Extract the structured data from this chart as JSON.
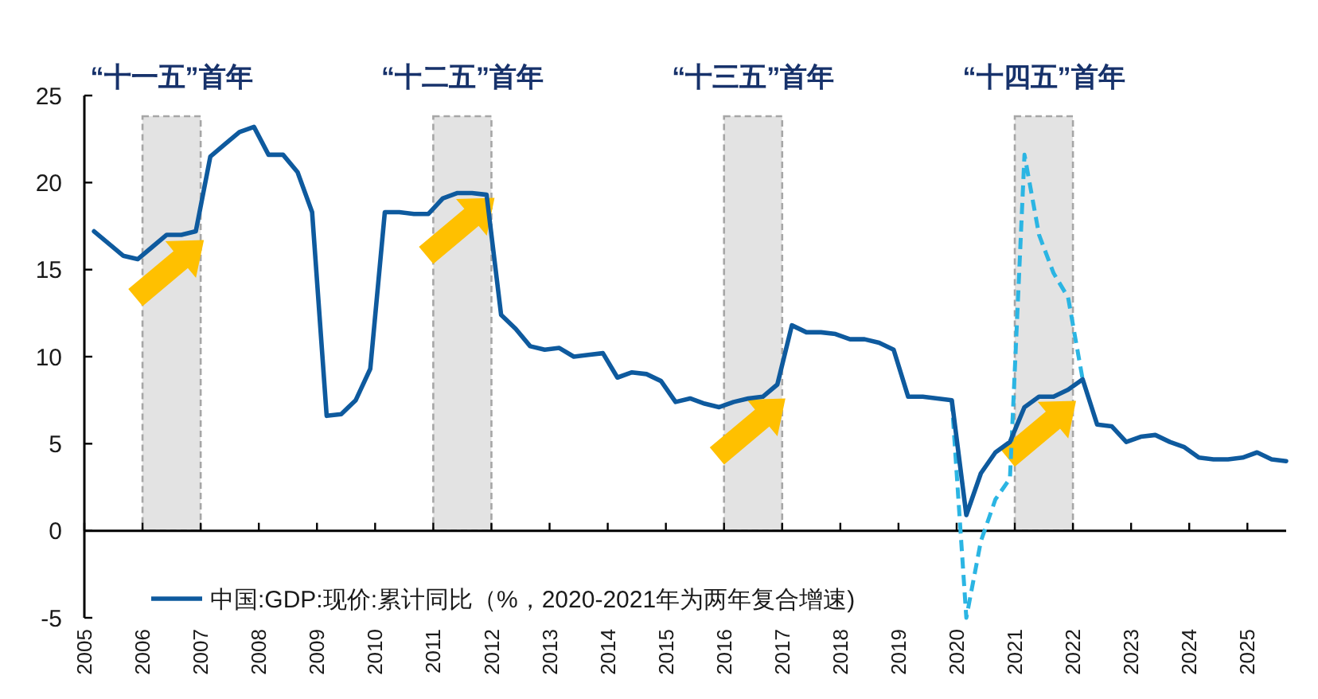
{
  "chart_data": {
    "type": "line",
    "x": [
      "2005-03",
      "2005-06",
      "2005-09",
      "2005-12",
      "2006-03",
      "2006-06",
      "2006-09",
      "2006-12",
      "2007-03",
      "2007-06",
      "2007-09",
      "2007-12",
      "2008-03",
      "2008-06",
      "2008-09",
      "2008-12",
      "2009-03",
      "2009-06",
      "2009-09",
      "2009-12",
      "2010-03",
      "2010-06",
      "2010-09",
      "2010-12",
      "2011-03",
      "2011-06",
      "2011-09",
      "2011-12",
      "2012-03",
      "2012-06",
      "2012-09",
      "2012-12",
      "2013-03",
      "2013-06",
      "2013-09",
      "2013-12",
      "2014-03",
      "2014-06",
      "2014-09",
      "2014-12",
      "2015-03",
      "2015-06",
      "2015-09",
      "2015-12",
      "2016-03",
      "2016-06",
      "2016-09",
      "2016-12",
      "2017-03",
      "2017-06",
      "2017-09",
      "2017-12",
      "2018-03",
      "2018-06",
      "2018-09",
      "2018-12",
      "2019-03",
      "2019-06",
      "2019-09",
      "2019-12",
      "2020-03",
      "2020-06",
      "2020-09",
      "2020-12",
      "2021-03",
      "2021-06",
      "2021-09",
      "2021-12",
      "2022-03",
      "2022-06",
      "2022-09",
      "2022-12",
      "2023-03",
      "2023-06",
      "2023-09",
      "2023-12",
      "2024-03",
      "2024-06",
      "2024-09",
      "2024-12",
      "2025-03",
      "2025-06",
      "2025-09"
    ],
    "series": [
      {
        "name": "中国:GDP:现价:累计同比（%，2020-2021年为两年复合增速)",
        "color": "#0e5a9e",
        "line_style": "solid",
        "values": [
          17.2,
          16.5,
          15.8,
          15.6,
          16.3,
          17.0,
          17.0,
          17.2,
          21.5,
          22.2,
          22.9,
          23.2,
          21.6,
          21.6,
          20.6,
          18.3,
          6.6,
          6.7,
          7.5,
          9.3,
          18.3,
          18.3,
          18.2,
          18.2,
          19.1,
          19.4,
          19.4,
          19.3,
          12.4,
          11.6,
          10.6,
          10.4,
          10.5,
          10.0,
          10.1,
          10.2,
          8.8,
          9.1,
          9.0,
          8.6,
          7.4,
          7.6,
          7.3,
          7.1,
          7.4,
          7.6,
          7.7,
          8.4,
          11.8,
          11.4,
          11.4,
          11.3,
          11.0,
          11.0,
          10.8,
          10.4,
          7.7,
          7.7,
          7.6,
          7.5,
          0.9,
          3.3,
          4.5,
          5.1,
          7.1,
          7.7,
          7.7,
          8.1,
          8.7,
          6.1,
          6.0,
          5.1,
          5.4,
          5.5,
          5.1,
          4.8,
          4.2,
          4.1,
          4.1,
          4.2,
          4.5,
          4.1,
          4.0
        ]
      },
      {
        "color": "#2bb5e3",
        "line_style": "dashed",
        "x": [
          "2019-12",
          "2020-03",
          "2020-06",
          "2020-09",
          "2020-12",
          "2021-03",
          "2021-06",
          "2021-09",
          "2021-12",
          "2022-03"
        ],
        "values": [
          7.5,
          -5.0,
          -0.6,
          1.8,
          3.0,
          21.6,
          17.0,
          14.8,
          13.4,
          8.7
        ]
      }
    ],
    "xlim": [
      "2005-01",
      "2025-09"
    ],
    "xticks": [
      {
        "value": "2005-01",
        "label": "2005"
      },
      {
        "value": "2006-01",
        "label": "2006"
      },
      {
        "value": "2007-01",
        "label": "2007"
      },
      {
        "value": "2008-01",
        "label": "2008"
      },
      {
        "value": "2009-01",
        "label": "2009"
      },
      {
        "value": "2010-01",
        "label": "2010"
      },
      {
        "value": "2011-01",
        "label": "2011"
      },
      {
        "value": "2012-01",
        "label": "2012"
      },
      {
        "value": "2013-01",
        "label": "2013"
      },
      {
        "value": "2014-01",
        "label": "2014"
      },
      {
        "value": "2015-01",
        "label": "2015"
      },
      {
        "value": "2016-01",
        "label": "2016"
      },
      {
        "value": "2017-01",
        "label": "2017"
      },
      {
        "value": "2018-01",
        "label": "2018"
      },
      {
        "value": "2019-01",
        "label": "2019"
      },
      {
        "value": "2020-01",
        "label": "2020"
      },
      {
        "value": "2021-01",
        "label": "2021"
      },
      {
        "value": "2022-01",
        "label": "2022"
      },
      {
        "value": "2023-01",
        "label": "2023"
      },
      {
        "value": "2024-01",
        "label": "2024"
      },
      {
        "value": "2025-01",
        "label": "2025"
      }
    ],
    "ylim": [
      -5,
      25
    ],
    "yticks": [
      -5,
      0,
      5,
      10,
      15,
      20,
      25
    ],
    "bands": [
      {
        "axis": "x",
        "from": "2006-01",
        "to": "2007-01",
        "label": "“十一五”首年",
        "color": "#e3e3e3"
      },
      {
        "axis": "x",
        "from": "2011-01",
        "to": "2012-01",
        "label": "“十二五”首年",
        "color": "#e3e3e3"
      },
      {
        "axis": "x",
        "from": "2016-01",
        "to": "2017-01",
        "label": "“十三五”首年",
        "color": "#e3e3e3"
      },
      {
        "axis": "x",
        "from": "2021-01",
        "to": "2022-01",
        "label": "“十四五”首年",
        "color": "#e3e3e3"
      }
    ],
    "legend": "bottom"
  }
}
